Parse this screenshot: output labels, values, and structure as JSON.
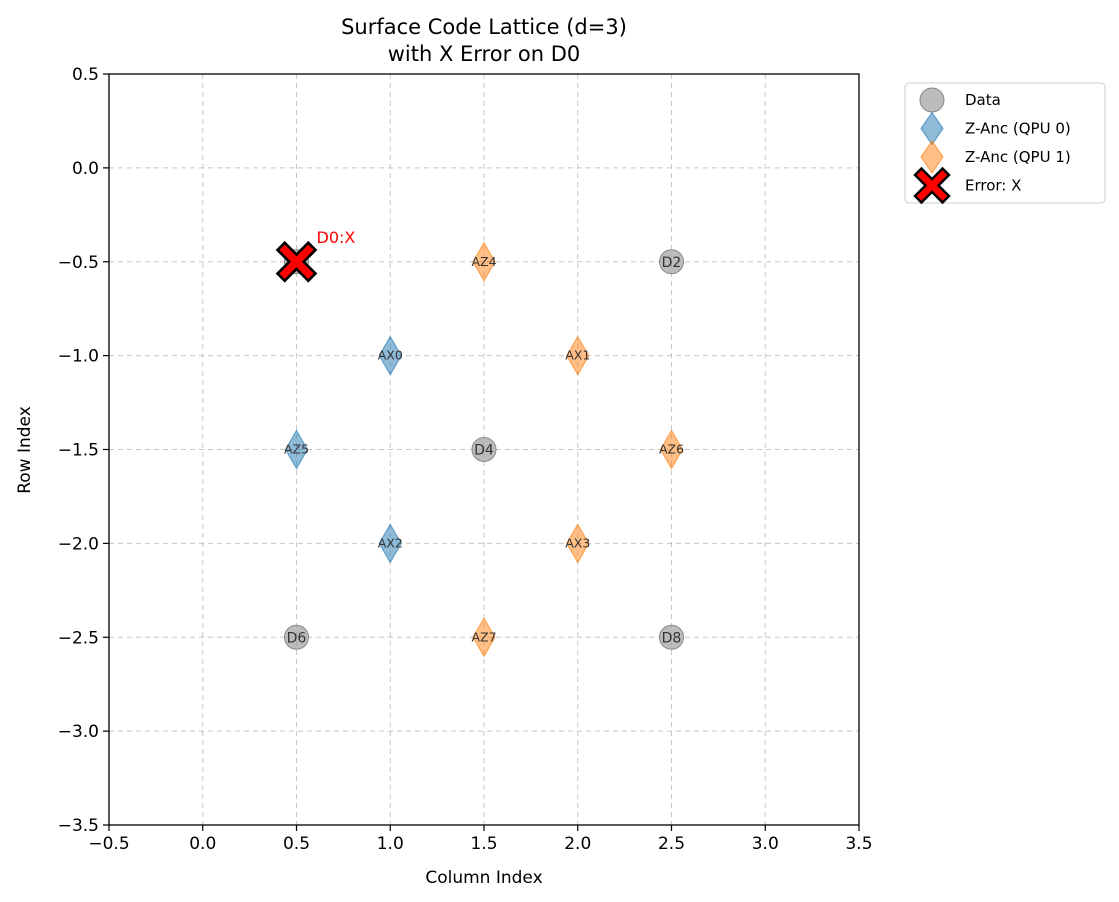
{
  "chart_data": {
    "type": "scatter",
    "title_lines": [
      "Surface Code Lattice (d=3)",
      "with X Error on D0"
    ],
    "xlabel": "Column Index",
    "ylabel": "Row Index",
    "xlim": [
      -0.5,
      3.5
    ],
    "ylim": [
      -3.5,
      0.5
    ],
    "xticks": [
      "−0.5",
      "0.0",
      "0.5",
      "1.0",
      "1.5",
      "2.0",
      "2.5",
      "3.0",
      "3.5"
    ],
    "yticks": [
      "0.5",
      "0.0",
      "−0.5",
      "−1.0",
      "−1.5",
      "−2.0",
      "−2.5",
      "−3.0",
      "−3.5"
    ],
    "xtick_values": [
      -0.5,
      0,
      0.5,
      1,
      1.5,
      2,
      2.5,
      3,
      3.5
    ],
    "ytick_values": [
      0.5,
      0,
      -0.5,
      -1,
      -1.5,
      -2,
      -2.5,
      -3,
      -3.5
    ],
    "grid": true,
    "legend_position": "outside top-right",
    "series": [
      {
        "name": "Data",
        "marker": "circle",
        "color": "#a0a0a0",
        "points": [
          {
            "x": 0.5,
            "y": -0.5,
            "label": "D0"
          },
          {
            "x": 2.5,
            "y": -0.5,
            "label": "D2"
          },
          {
            "x": 1.5,
            "y": -1.5,
            "label": "D4"
          },
          {
            "x": 0.5,
            "y": -2.5,
            "label": "D6"
          },
          {
            "x": 2.5,
            "y": -2.5,
            "label": "D8"
          }
        ]
      },
      {
        "name": "Z-Anc (QPU 0)",
        "marker": "diamond",
        "color": "#1f77b4",
        "points": [
          {
            "x": 1.0,
            "y": -1.0,
            "label": "AX0"
          },
          {
            "x": 0.5,
            "y": -1.5,
            "label": "AZ5"
          },
          {
            "x": 1.0,
            "y": -2.0,
            "label": "AX2"
          }
        ]
      },
      {
        "name": "Z-Anc (QPU 1)",
        "marker": "diamond",
        "color": "#ff7f0e",
        "points": [
          {
            "x": 1.5,
            "y": -0.5,
            "label": "AZ4"
          },
          {
            "x": 2.0,
            "y": -1.0,
            "label": "AX1"
          },
          {
            "x": 2.5,
            "y": -1.5,
            "label": "AZ6"
          },
          {
            "x": 2.0,
            "y": -2.0,
            "label": "AX3"
          },
          {
            "x": 1.5,
            "y": -2.5,
            "label": "AZ7"
          }
        ]
      },
      {
        "name": "Error: X",
        "marker": "x-filled",
        "color": "#ff0000",
        "points": [
          {
            "x": 0.5,
            "y": -0.5,
            "label": "D0:X"
          }
        ]
      }
    ]
  }
}
